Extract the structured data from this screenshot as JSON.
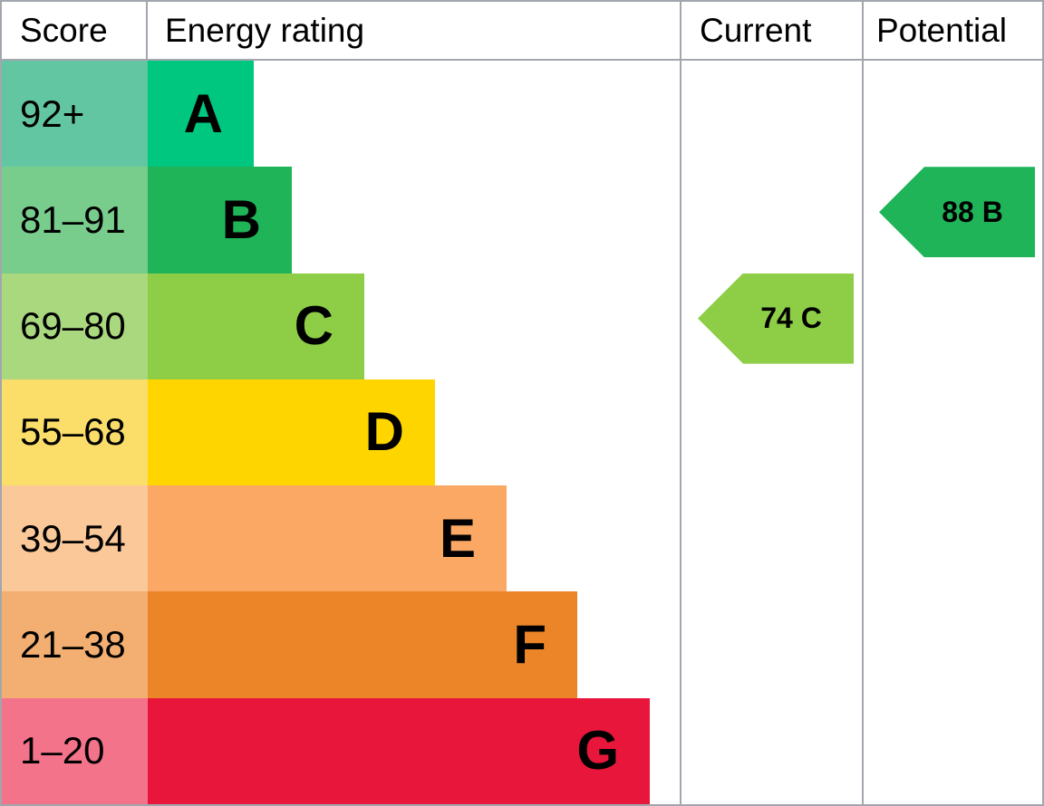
{
  "header": {
    "score": "Score",
    "energy_rating": "Energy rating",
    "current": "Current",
    "potential": "Potential"
  },
  "rows": [
    {
      "score": "92+",
      "letter": "A",
      "cell_color": "#63c6a2",
      "band_color": "#00c77f",
      "band_width": 117
    },
    {
      "score": "81–91",
      "letter": "B",
      "cell_color": "#79cd8c",
      "band_color": "#1fb458",
      "band_width": 159
    },
    {
      "score": "69–80",
      "letter": "C",
      "cell_color": "#a9d87f",
      "band_color": "#8dce46",
      "band_width": 239
    },
    {
      "score": "55–68",
      "letter": "D",
      "cell_color": "#fbde6a",
      "band_color": "#ffd500",
      "band_width": 317
    },
    {
      "score": "39–54",
      "letter": "E",
      "cell_color": "#fbc899",
      "band_color": "#faa863",
      "band_width": 396
    },
    {
      "score": "21–38",
      "letter": "F",
      "cell_color": "#f3af72",
      "band_color": "#ec8527",
      "band_width": 474
    },
    {
      "score": "1–20",
      "letter": "G",
      "cell_color": "#f3748a",
      "band_color": "#e9163c",
      "band_width": 554
    }
  ],
  "markers": {
    "current": {
      "label": "74 C",
      "score": 74,
      "band": "C",
      "color": "#8dce46",
      "row_index": 2
    },
    "potential": {
      "label": "88 B",
      "score": 88,
      "band": "B",
      "color": "#1fb458",
      "row_index": 1
    }
  },
  "colors": {
    "border": "#a2a6ad",
    "text": "#000000",
    "background": "#ffffff"
  },
  "chart_data": {
    "type": "bar",
    "subtype": "epc-energy-rating",
    "title": "Energy rating",
    "categories": [
      "A",
      "B",
      "C",
      "D",
      "E",
      "F",
      "G"
    ],
    "score_ranges": [
      "92+",
      "81–91",
      "69–80",
      "55–68",
      "39–54",
      "21–38",
      "1–20"
    ],
    "band_colors": [
      "#00c77f",
      "#1fb458",
      "#8dce46",
      "#ffd500",
      "#faa863",
      "#ec8527",
      "#e9163c"
    ],
    "columns": [
      "Score",
      "Energy rating",
      "Current",
      "Potential"
    ],
    "current": {
      "value": 74,
      "band": "C"
    },
    "potential": {
      "value": 88,
      "band": "B"
    },
    "legend_position": "none",
    "grid": false
  }
}
